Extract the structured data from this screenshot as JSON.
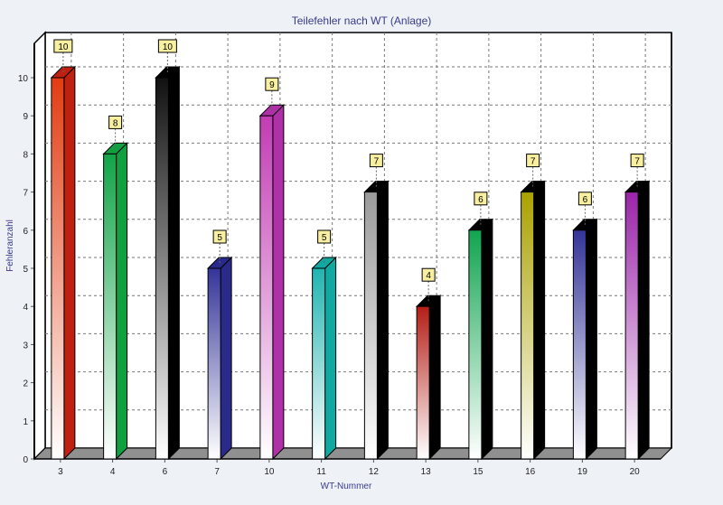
{
  "chart_data": {
    "type": "bar",
    "title": "Teilefehler nach WT (Anlage)",
    "xlabel": "WT-Nummer",
    "ylabel": "Fehleranzahl",
    "ylim": [
      0,
      10
    ],
    "yticks": [
      0,
      1,
      2,
      3,
      4,
      5,
      6,
      7,
      8,
      9,
      10
    ],
    "grid": true,
    "style": "3d-bar-gradient",
    "categories": [
      "3",
      "4",
      "6",
      "7",
      "10",
      "11",
      "12",
      "13",
      "15",
      "16",
      "19",
      "20"
    ],
    "values": [
      10,
      8,
      10,
      5,
      9,
      5,
      7,
      4,
      6,
      7,
      6,
      7
    ],
    "bar_colors": [
      "#e23c12",
      "#12a448",
      "#111111",
      "#34349a",
      "#c23cb4",
      "#20b4b0",
      "#9a9a9a",
      "#b41e16",
      "#12a450",
      "#aaa200",
      "#34349a",
      "#9a24a8"
    ],
    "side_colors": [
      "#c02010",
      "#10a040",
      "#000000",
      "#2a2a8a",
      "#b030a8",
      "#10a8a0",
      "#000000",
      "#000000",
      "#000000",
      "#000000",
      "#000000",
      "#000000"
    ],
    "colors": {
      "title": "#3a3a8c",
      "axis_label": "#3a3a8c",
      "label_box": "#f8f0a0",
      "floor": "#909090"
    }
  }
}
